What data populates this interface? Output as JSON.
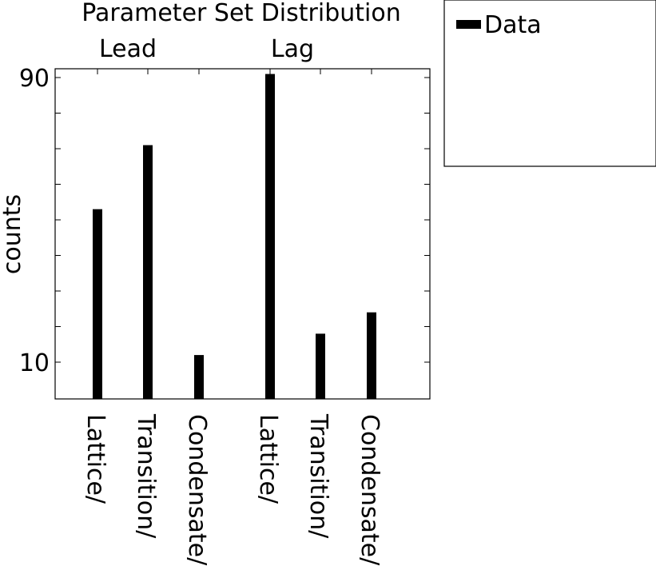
{
  "chart_data": {
    "type": "bar",
    "title": "Parameter Set Distribution",
    "ylabel": "counts",
    "xlabel": "",
    "yticks": [
      10,
      90
    ],
    "ylim": [
      0,
      92
    ],
    "grid": false,
    "legend_position": "outside-top-right",
    "groups": [
      {
        "label": "Lead",
        "categories": [
          "Lattice/",
          "Transition/",
          "Condensate/"
        ]
      },
      {
        "label": "Lag",
        "categories": [
          "Lattice/",
          "Transition/",
          "Condensate/"
        ]
      }
    ],
    "categories": [
      "Lattice/",
      "Transition/",
      "Condensate/",
      "Lattice/",
      "Transition/",
      "Condensate/"
    ],
    "series": [
      {
        "name": "Data",
        "values": [
          53,
          71,
          12,
          91,
          18,
          24
        ]
      }
    ],
    "colors": {
      "bar": "#000000",
      "axes": "#000000",
      "background": "#ffffff"
    }
  }
}
